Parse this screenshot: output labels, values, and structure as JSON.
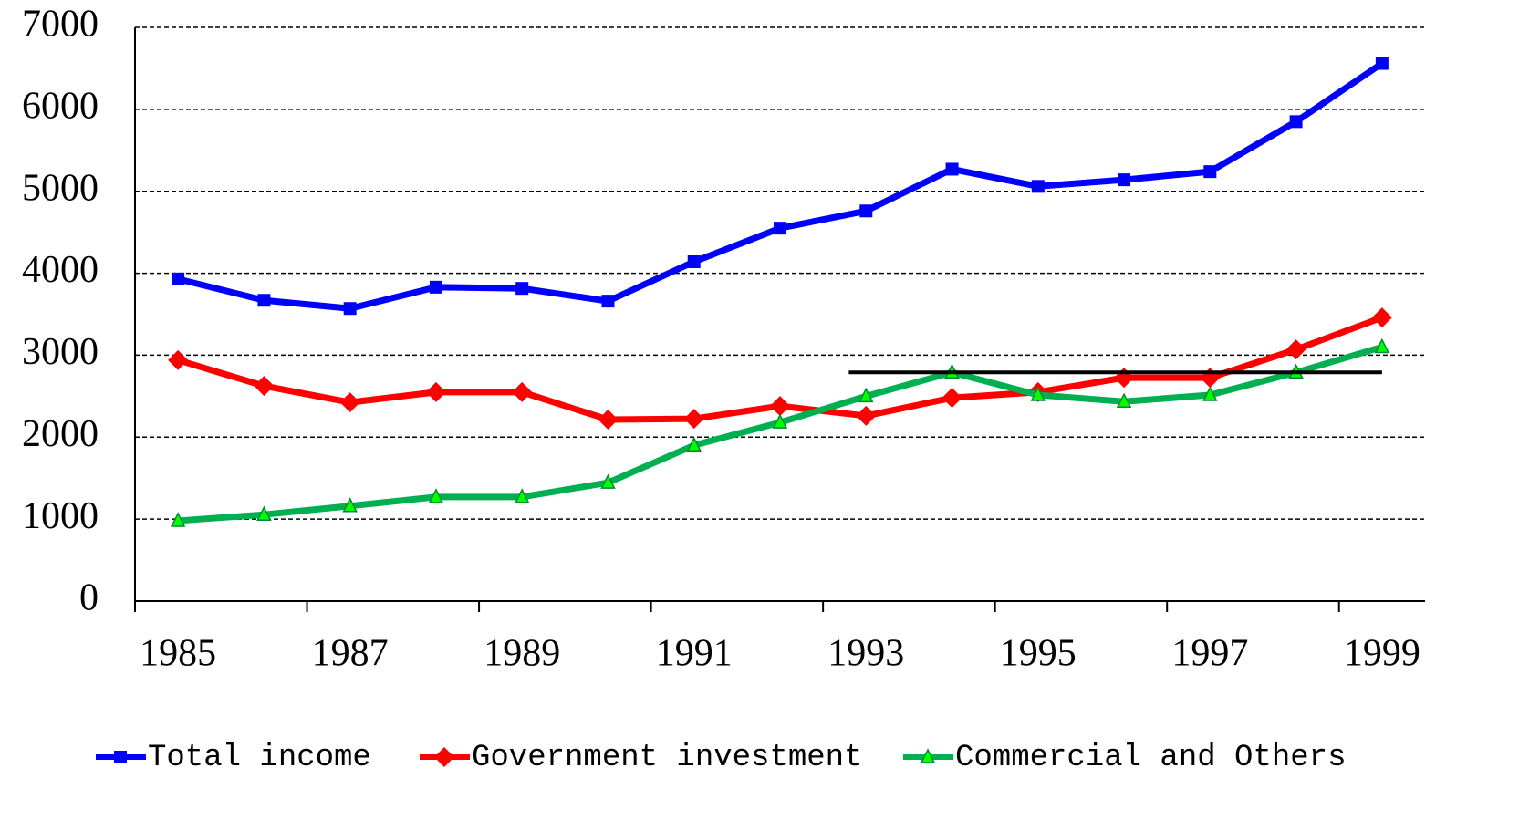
{
  "chart_data": {
    "type": "line",
    "categories": [
      "1985",
      null,
      "1987",
      null,
      "1989",
      null,
      "1991",
      null,
      "1993",
      null,
      "1995",
      null,
      "1997",
      null,
      "1999"
    ],
    "series": [
      {
        "name": "Total income",
        "color": "#0000ff",
        "marker": "square",
        "values": [
          3930,
          3670,
          3570,
          3830,
          3815,
          3660,
          4140,
          4550,
          4760,
          5270,
          5060,
          5140,
          5240,
          5850,
          6560
        ]
      },
      {
        "name": "Government investment",
        "color": "#ff0000",
        "marker": "diamond",
        "values": [
          2940,
          2625,
          2425,
          2550,
          2550,
          2215,
          2225,
          2380,
          2260,
          2480,
          2550,
          2725,
          2725,
          3070,
          3460
        ]
      },
      {
        "name": "Commercial and Others",
        "color": "#00b050",
        "marker": "triangle",
        "values": [
          980,
          1055,
          1160,
          1270,
          1270,
          1445,
          1900,
          2180,
          2500,
          2790,
          2515,
          2435,
          2515,
          2790,
          3100
        ]
      }
    ],
    "reference_line": {
      "value": 2790,
      "color": "#000000"
    },
    "ylim": [
      0,
      7000
    ],
    "yticks": [
      0,
      1000,
      2000,
      3000,
      4000,
      5000,
      6000,
      7000
    ],
    "grid": true,
    "legend": "bottom"
  }
}
